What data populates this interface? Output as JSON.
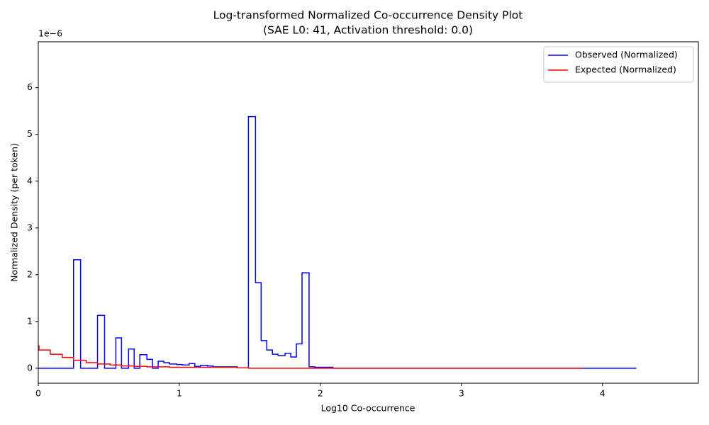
{
  "chart_data": {
    "type": "step",
    "title": "Log-transformed Normalized Co-occurrence Density Plot",
    "subtitle": "(SAE L0: 41, Activation threshold: 0.0)",
    "x_label": "Log10 Co-occurrence",
    "y_label": "Normalized Density (per token)",
    "y_offset_text": "1e−6",
    "xlim": [
      0,
      4.68
    ],
    "ylim": [
      -0.32,
      6.98
    ],
    "xticks": [
      0,
      1,
      2,
      3,
      4
    ],
    "yticks": [
      0,
      1,
      2,
      3,
      4,
      5,
      6
    ],
    "legend": "upper right",
    "grid": false,
    "series": [
      {
        "name": "Observed (Normalized)",
        "color": "#0000ff",
        "x": [
          0,
          0.25,
          0.3,
          0.42,
          0.47,
          0.55,
          0.59,
          0.64,
          0.68,
          0.72,
          0.77,
          0.81,
          0.85,
          0.89,
          0.93,
          0.98,
          1.02,
          1.07,
          1.11,
          1.15,
          1.2,
          1.24,
          1.41,
          1.49,
          1.54,
          1.58,
          1.62,
          1.66,
          1.7,
          1.75,
          1.79,
          1.83,
          1.87,
          1.92,
          1.96,
          2.09,
          4.24
        ],
        "values": [
          0,
          2.32,
          0,
          1.13,
          0,
          0.65,
          0,
          0.41,
          0,
          0.29,
          0.19,
          0,
          0.15,
          0.12,
          0.09,
          0.08,
          0.07,
          0.1,
          0.04,
          0.06,
          0.05,
          0.03,
          0.01,
          5.38,
          1.83,
          0.59,
          0.39,
          0.3,
          0.27,
          0.32,
          0.24,
          0.52,
          2.04,
          0.03,
          0.02,
          0,
          0
        ]
      },
      {
        "name": "Expected (Normalized)",
        "color": "#ff0000",
        "x": [
          0,
          0.005,
          0.085,
          0.17,
          0.25,
          0.34,
          0.42,
          0.51,
          0.59,
          0.68,
          0.77,
          0.93,
          1.41,
          1.49,
          3.86
        ],
        "values": [
          0.48,
          0.39,
          0.3,
          0.23,
          0.17,
          0.12,
          0.09,
          0.07,
          0.05,
          0.04,
          0.03,
          0.02,
          0.01,
          0,
          0
        ]
      }
    ]
  }
}
